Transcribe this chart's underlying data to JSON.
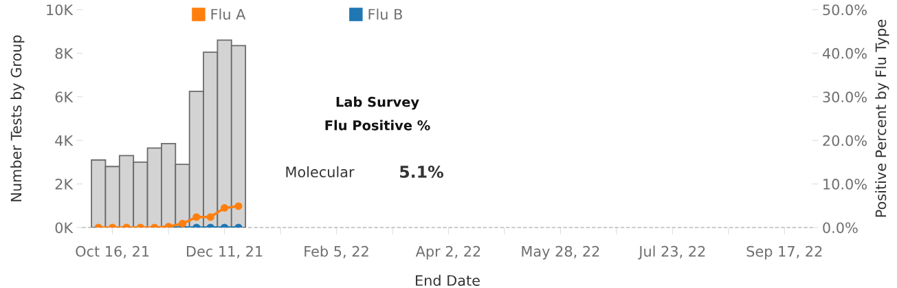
{
  "chart_data": {
    "type": "bar",
    "x": [
      "2021-10-09",
      "2021-10-16",
      "2021-10-23",
      "2021-10-30",
      "2021-11-06",
      "2021-11-13",
      "2021-11-20",
      "2021-11-27",
      "2021-12-04",
      "2021-12-11",
      "2021-12-18"
    ],
    "series": [
      {
        "color": "#d3d3d3",
        "values": [
          3100,
          2800,
          3300,
          3000,
          3650,
          3850,
          2900,
          6250,
          8050,
          8600,
          8350
        ]
      },
      {
        "type": "line",
        "name": "Flu A",
        "color": "#ff7f0e",
        "axis": "y2",
        "values": [
          0.0,
          0.0,
          0.0,
          0.0,
          0.0,
          0.2,
          0.9,
          2.4,
          2.4,
          4.5,
          4.9
        ]
      },
      {
        "type": "line",
        "name": "Flu B",
        "color": "#1f77b4",
        "axis": "y2",
        "values": [
          null,
          null,
          null,
          null,
          null,
          0.0,
          0.0,
          0.0,
          0.0,
          0.0,
          0.0
        ]
      }
    ],
    "xlabel": "End Date",
    "ylabel": "Number Tests by Group",
    "y2label": "Positive Percent by Flu Type",
    "xlim": [
      "2021-10-01",
      "2022-10-01"
    ],
    "xticks": [
      {
        "value": "2021-10-16",
        "label": "Oct 16, 21"
      },
      {
        "value": "2021-11-13",
        "label": null
      },
      {
        "value": "2021-12-11",
        "label": "Dec 11, 21"
      },
      {
        "value": "2022-01-08",
        "label": null
      },
      {
        "value": "2022-02-05",
        "label": "Feb 5, 22"
      },
      {
        "value": "2022-03-05",
        "label": null
      },
      {
        "value": "2022-04-02",
        "label": "Apr 2, 22"
      },
      {
        "value": "2022-04-30",
        "label": null
      },
      {
        "value": "2022-05-28",
        "label": "May 28, 22"
      },
      {
        "value": "2022-06-25",
        "label": null
      },
      {
        "value": "2022-07-23",
        "label": "Jul 23, 22"
      },
      {
        "value": "2022-08-20",
        "label": null
      },
      {
        "value": "2022-09-17",
        "label": "Sep 17, 22"
      }
    ],
    "ylim": [
      0,
      10000
    ],
    "yticks": [
      {
        "value": 0,
        "label": "0K"
      },
      {
        "value": 2000,
        "label": "2K"
      },
      {
        "value": 4000,
        "label": "4K"
      },
      {
        "value": 6000,
        "label": "6K"
      },
      {
        "value": 8000,
        "label": "8K"
      },
      {
        "value": 10000,
        "label": "10K"
      }
    ],
    "y2lim": [
      0,
      50
    ],
    "y2ticks": [
      {
        "value": 0,
        "label": "0.0%"
      },
      {
        "value": 10,
        "label": "10.0%"
      },
      {
        "value": 20,
        "label": "20.0%"
      },
      {
        "value": 30,
        "label": "30.0%"
      },
      {
        "value": 40,
        "label": "40.0%"
      },
      {
        "value": 50,
        "label": "50.0%"
      }
    ],
    "annotations": [
      "Lab Survey",
      "Flu Positive %",
      "Molecular",
      "5.1%"
    ],
    "legend": "top",
    "marker": "circle",
    "line_style": "solid"
  }
}
